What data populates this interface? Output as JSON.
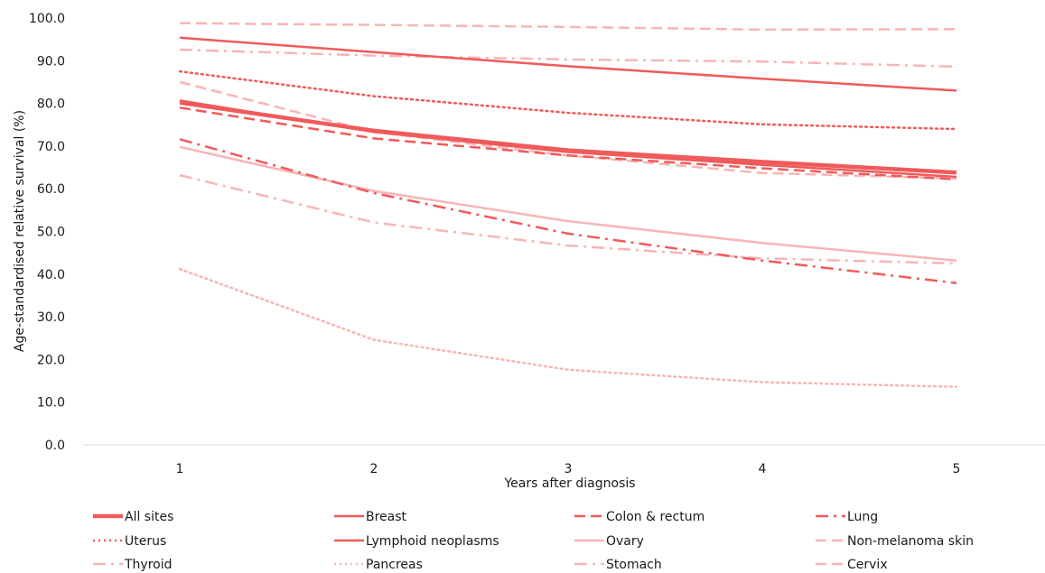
{
  "chart_data": {
    "type": "line",
    "xlabel": "Years after diagnosis",
    "ylabel": "Age-standardised relative survival (%)",
    "ylim": [
      0,
      100
    ],
    "ytick_step": 10,
    "ytick_format": "one-decimal",
    "x": [
      1,
      2,
      3,
      4,
      5
    ],
    "grid": false,
    "legend_position": "bottom",
    "series": [
      {
        "name": "All sites",
        "values": [
          80.2,
          73.6,
          69.0,
          66.3,
          63.8
        ],
        "color": "#f05a5a",
        "style": "solid-thick"
      },
      {
        "name": "Breast",
        "values": [
          95.4,
          92.0,
          88.7,
          85.8,
          83.0
        ],
        "color": "#f05a5a",
        "style": "solid"
      },
      {
        "name": "Colon & rectum",
        "values": [
          79.0,
          71.8,
          67.8,
          64.8,
          62.2
        ],
        "color": "#f05a5a",
        "style": "dashed"
      },
      {
        "name": "Lung",
        "values": [
          71.6,
          59.0,
          49.5,
          43.2,
          37.9
        ],
        "color": "#f05a5a",
        "style": "dashdot"
      },
      {
        "name": "Uterus",
        "values": [
          87.5,
          81.7,
          77.8,
          75.1,
          74.0
        ],
        "color": "#f05a5a",
        "style": "dotted"
      },
      {
        "name": "Lymphoid neoplasms",
        "values": [
          80.7,
          73.3,
          68.6,
          65.6,
          62.8
        ],
        "color": "#f05a5a",
        "style": "solid"
      },
      {
        "name": "Ovary",
        "values": [
          69.8,
          59.5,
          52.4,
          47.3,
          43.2
        ],
        "color": "#f7b5b5",
        "style": "solid"
      },
      {
        "name": "Non-melanoma skin",
        "values": [
          85.0,
          73.3,
          67.8,
          63.7,
          62.4
        ],
        "color": "#f7b5b5",
        "style": "dashed"
      },
      {
        "name": "Thyroid",
        "values": [
          63.2,
          52.1,
          46.7,
          43.7,
          42.5
        ],
        "color": "#f7b5b5",
        "style": "dashdot"
      },
      {
        "name": "Pancreas",
        "values": [
          41.2,
          24.6,
          17.6,
          14.7,
          13.6
        ],
        "color": "#f7b5b5",
        "style": "dotted"
      },
      {
        "name": "Stomach",
        "values": [
          92.6,
          91.2,
          90.3,
          89.8,
          88.6
        ],
        "color": "#f7b5b5",
        "style": "dashdot"
      },
      {
        "name": "Cervix",
        "values": [
          98.8,
          98.4,
          97.9,
          97.3,
          97.4
        ],
        "color": "#f7b5b5",
        "style": "dashed"
      }
    ]
  }
}
